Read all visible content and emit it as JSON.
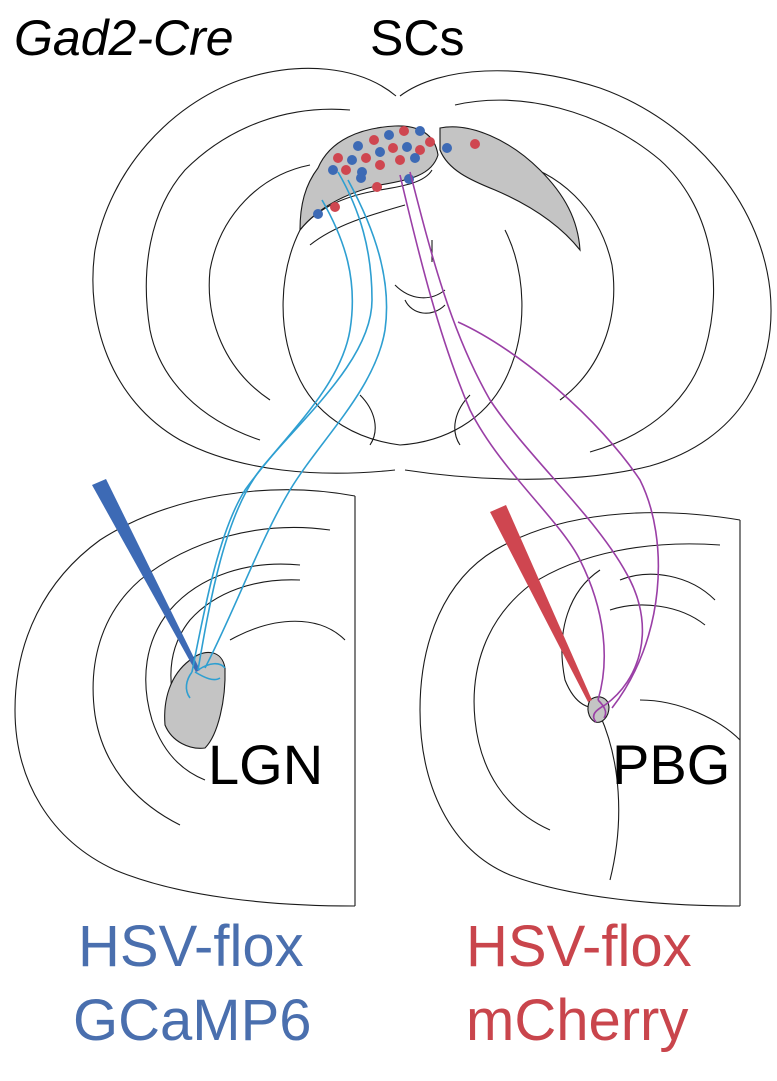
{
  "labels": {
    "line_title": "Gad2-Cre",
    "region_top": "SCs",
    "region_left": "LGN",
    "region_right": "PBG",
    "virus_left_line1": "HSV-flox",
    "virus_left_line2": "GCaMP6",
    "virus_right_line1": "HSV-flox",
    "virus_right_line2": "mCherry"
  },
  "colors": {
    "blue_label": "#4a6fae",
    "red_label": "#c9454c",
    "blue_dot": "#3d6ab5",
    "red_dot": "#cf4650",
    "axon_blue": "#2e9fd1",
    "axon_purple": "#9a3fa6",
    "nucleus_fill": "#c4c4c4",
    "outline": "#1a1a1a"
  }
}
